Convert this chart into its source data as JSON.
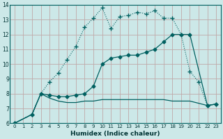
{
  "xlabel": "Humidex (Indice chaleur)",
  "bg_color": "#cce8e8",
  "grid_color": "#c0a8a8",
  "line_color": "#006060",
  "xlim": [
    -0.5,
    23.5
  ],
  "ylim": [
    6,
    14
  ],
  "xticks": [
    0,
    1,
    2,
    3,
    4,
    5,
    6,
    7,
    8,
    9,
    10,
    11,
    12,
    13,
    14,
    15,
    16,
    17,
    18,
    19,
    20,
    21,
    22,
    23
  ],
  "yticks": [
    6,
    7,
    8,
    9,
    10,
    11,
    12,
    13,
    14
  ],
  "series1_x": [
    0,
    2,
    3,
    4,
    5,
    6,
    7,
    8,
    9,
    10,
    11,
    12,
    13,
    14,
    15,
    16,
    17,
    18,
    19,
    20,
    21,
    22,
    23
  ],
  "series1_y": [
    6.0,
    6.6,
    8.0,
    8.8,
    9.4,
    10.3,
    11.2,
    12.5,
    13.1,
    13.8,
    12.4,
    13.2,
    13.3,
    13.5,
    13.4,
    13.6,
    13.1,
    13.1,
    12.0,
    9.5,
    8.8,
    7.2,
    7.3
  ],
  "series2_x": [
    0,
    2,
    3,
    4,
    5,
    6,
    7,
    8,
    9,
    10,
    11,
    12,
    13,
    14,
    15,
    16,
    17,
    18,
    19,
    20,
    22,
    23
  ],
  "series2_y": [
    6.0,
    6.6,
    8.0,
    7.9,
    7.8,
    7.8,
    7.9,
    8.0,
    8.5,
    10.0,
    10.4,
    10.5,
    10.6,
    10.6,
    10.8,
    11.0,
    11.5,
    12.0,
    12.0,
    12.0,
    7.2,
    7.3
  ],
  "series3_x": [
    0,
    2,
    3,
    4,
    5,
    6,
    7,
    8,
    9,
    10,
    11,
    12,
    13,
    14,
    15,
    16,
    17,
    18,
    19,
    20,
    22,
    23
  ],
  "series3_y": [
    6.0,
    6.6,
    8.0,
    7.7,
    7.5,
    7.4,
    7.4,
    7.5,
    7.5,
    7.6,
    7.6,
    7.6,
    7.6,
    7.6,
    7.6,
    7.6,
    7.6,
    7.5,
    7.5,
    7.5,
    7.2,
    7.3
  ]
}
